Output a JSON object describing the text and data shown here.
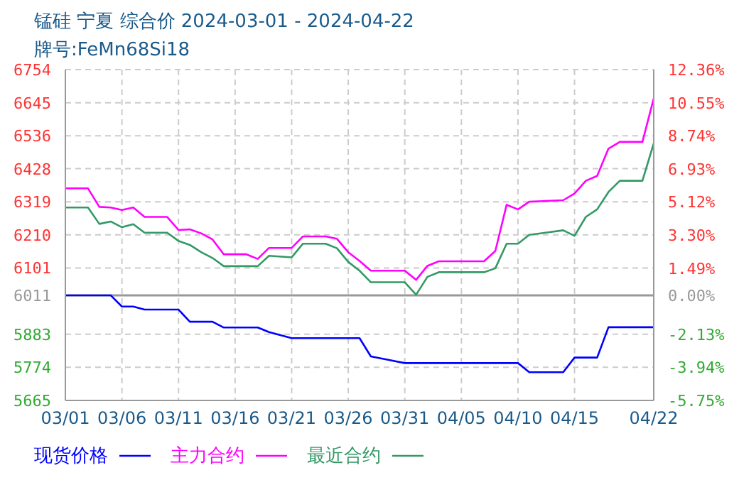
{
  "chart_data": {
    "type": "line",
    "title": "锰硅 宁夏 综合价 2024-03-01 - 2024-04-22",
    "subtitle": "牌号:FeMn68Si18",
    "x": [
      "2024-03-01",
      "2024-03-03",
      "2024-03-04",
      "2024-03-05",
      "2024-03-06",
      "2024-03-07",
      "2024-03-08",
      "2024-03-10",
      "2024-03-11",
      "2024-03-12",
      "2024-03-13",
      "2024-03-14",
      "2024-03-15",
      "2024-03-17",
      "2024-03-18",
      "2024-03-19",
      "2024-03-21",
      "2024-03-22",
      "2024-03-24",
      "2024-03-25",
      "2024-03-26",
      "2024-03-27",
      "2024-03-28",
      "2024-03-31",
      "2024-04-01",
      "2024-04-02",
      "2024-04-03",
      "2024-04-07",
      "2024-04-08",
      "2024-04-09",
      "2024-04-10",
      "2024-04-11",
      "2024-04-14",
      "2024-04-15",
      "2024-04-16",
      "2024-04-17",
      "2024-04-18",
      "2024-04-19",
      "2024-04-21",
      "2024-04-22"
    ],
    "series": [
      {
        "name": "现货价格",
        "color": "#0000ff",
        "values": [
          6011,
          6011,
          6011,
          6011,
          5974,
          5974,
          5964,
          5964,
          5964,
          5924,
          5924,
          5924,
          5905,
          5905,
          5905,
          5890,
          5870,
          5870,
          5870,
          5870,
          5870,
          5870,
          5810,
          5788,
          5788,
          5788,
          5788,
          5788,
          5788,
          5788,
          5788,
          5758,
          5758,
          5806,
          5806,
          5806,
          5906,
          5906,
          5906,
          5906
        ]
      },
      {
        "name": "主力合约",
        "color": "#ff00ff",
        "values": [
          6363,
          6363,
          6302,
          6300,
          6292,
          6300,
          6269,
          6269,
          6226,
          6228,
          6215,
          6195,
          6146,
          6146,
          6131,
          6167,
          6167,
          6205,
          6205,
          6197,
          6153,
          6124,
          6092,
          6092,
          6062,
          6108,
          6123,
          6123,
          6157,
          6309,
          6294,
          6319,
          6324,
          6346,
          6388,
          6404,
          6494,
          6516,
          6516,
          6659
        ]
      },
      {
        "name": "最近合约",
        "color": "#339966",
        "values": [
          6300,
          6300,
          6246,
          6254,
          6235,
          6245,
          6217,
          6217,
          6190,
          6177,
          6153,
          6134,
          6107,
          6107,
          6107,
          6141,
          6136,
          6181,
          6181,
          6166,
          6121,
          6092,
          6054,
          6054,
          6013,
          6072,
          6087,
          6087,
          6100,
          6181,
          6181,
          6210,
          6225,
          6207,
          6269,
          6294,
          6351,
          6388,
          6388,
          6511
        ]
      }
    ],
    "xlim": [
      "2024-03-01",
      "2024-04-22"
    ],
    "xticks": [
      {
        "value": "2024-03-01",
        "label": "03/01"
      },
      {
        "value": "2024-03-06",
        "label": "03/06"
      },
      {
        "value": "2024-03-11",
        "label": "03/11"
      },
      {
        "value": "2024-03-16",
        "label": "03/16"
      },
      {
        "value": "2024-03-21",
        "label": "03/21"
      },
      {
        "value": "2024-03-26",
        "label": "03/26"
      },
      {
        "value": "2024-03-31",
        "label": "03/31"
      },
      {
        "value": "2024-04-05",
        "label": "04/05"
      },
      {
        "value": "2024-04-10",
        "label": "04/10"
      },
      {
        "value": "2024-04-15",
        "label": "04/15"
      },
      {
        "value": "2024-04-22",
        "label": "04/22"
      }
    ],
    "ylim": [
      5665,
      6754
    ],
    "yticks": [
      5665,
      5774,
      5883,
      6011,
      6101,
      6210,
      6319,
      6428,
      6536,
      6645,
      6754
    ],
    "y2lim": [
      -5.75,
      12.36
    ],
    "y2ticks": [
      {
        "value": -5.75,
        "label": "-5.75%"
      },
      {
        "value": -3.94,
        "label": "-3.94%"
      },
      {
        "value": -2.13,
        "label": "-2.13%"
      },
      {
        "value": 0,
        "label": "0.00%"
      },
      {
        "value": 1.49,
        "label": "1.49%"
      },
      {
        "value": 3.3,
        "label": "3.30%"
      },
      {
        "value": 5.12,
        "label": "5.12%"
      },
      {
        "value": 6.93,
        "label": "6.93%"
      },
      {
        "value": 8.74,
        "label": "8.74%"
      },
      {
        "value": 10.55,
        "label": "10.55%"
      },
      {
        "value": 12.36,
        "label": "12.36%"
      }
    ],
    "ref_lines": [
      {
        "axis": "y",
        "value": 6011,
        "color": "#999999"
      }
    ],
    "grid": true,
    "legend": "bottom",
    "marker": "none",
    "line_style": "solid"
  }
}
